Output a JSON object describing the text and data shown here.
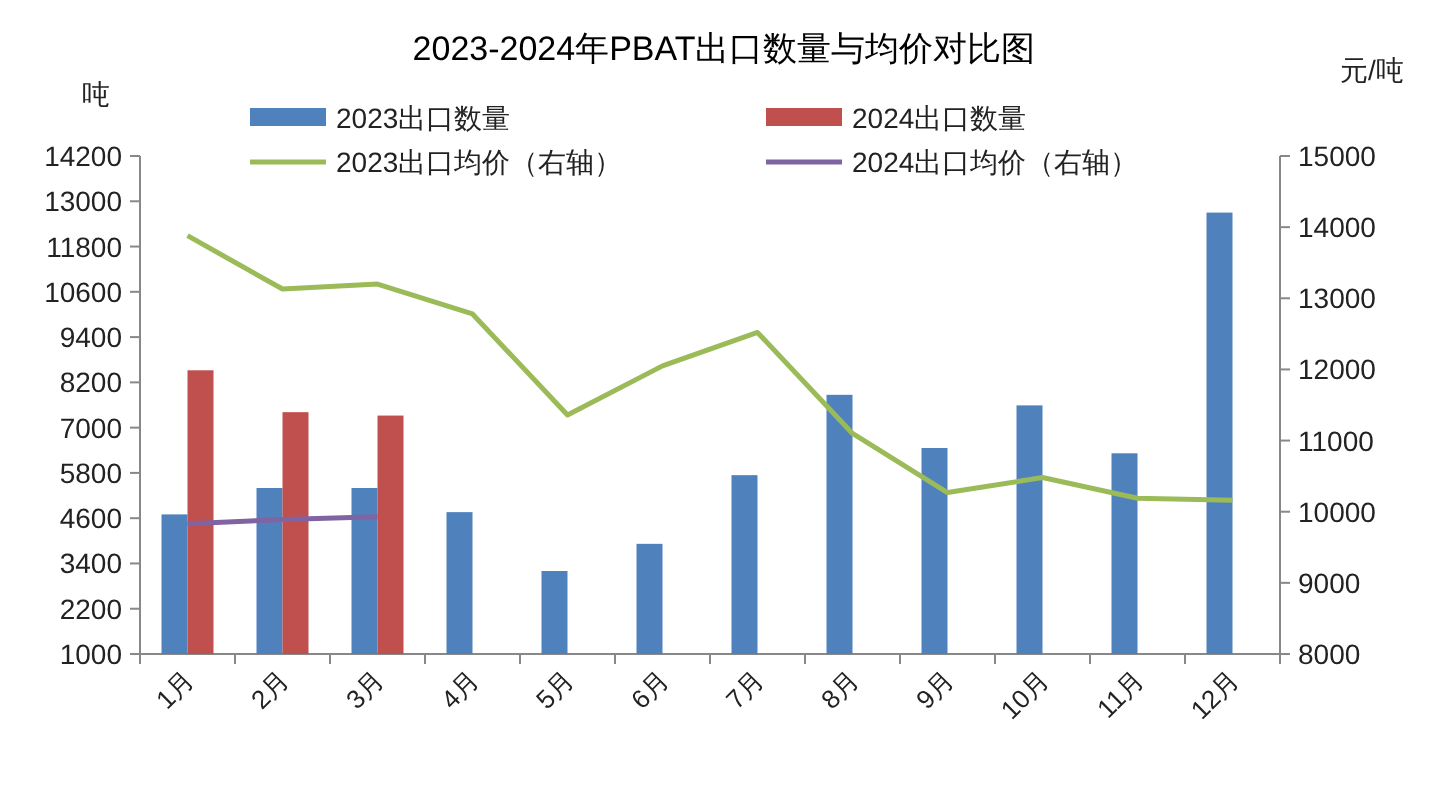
{
  "chart_data": {
    "type": "bar",
    "title": "2023-2024年PBAT出口数量与均价对比图",
    "ylabel": "吨",
    "y2label": "元/吨",
    "categories": [
      "1月",
      "2月",
      "3月",
      "4月",
      "5月",
      "6月",
      "7月",
      "8月",
      "9月",
      "10月",
      "11月",
      "12月"
    ],
    "series": [
      {
        "name": "2023出口数量",
        "color": "#4f81bd",
        "values": [
          4700,
          5400,
          5400,
          4760,
          3200,
          3920,
          5740,
          7870,
          6460,
          7590,
          6320,
          12700
        ]
      },
      {
        "name": "2024出口数量",
        "color": "#c0504d",
        "values": [
          8520,
          7410,
          7320,
          null,
          null,
          null,
          null,
          null,
          null,
          null,
          null,
          null
        ]
      },
      {
        "name": "2023出口均价（右轴）",
        "type": "line",
        "axis": "y2",
        "color": "#9bbb59",
        "values": [
          13880,
          13130,
          13200,
          12780,
          11360,
          12050,
          12520,
          11100,
          10270,
          10480,
          10190,
          10160
        ]
      },
      {
        "name": "2024出口均价（右轴）",
        "type": "line",
        "axis": "y2",
        "color": "#8064a2",
        "values": [
          9830,
          9890,
          9930,
          null,
          null,
          null,
          null,
          null,
          null,
          null,
          null,
          null
        ]
      }
    ],
    "ylim": [
      1000,
      14200
    ],
    "yticks": [
      1000,
      2200,
      3400,
      4600,
      5800,
      7000,
      8200,
      9400,
      10600,
      11800,
      13000,
      14200
    ],
    "y2lim": [
      8000,
      15000
    ],
    "y2ticks": [
      8000,
      9000,
      10000,
      11000,
      12000,
      13000,
      14000,
      15000
    ],
    "legend": "top",
    "grid": false,
    "marker": "none"
  }
}
